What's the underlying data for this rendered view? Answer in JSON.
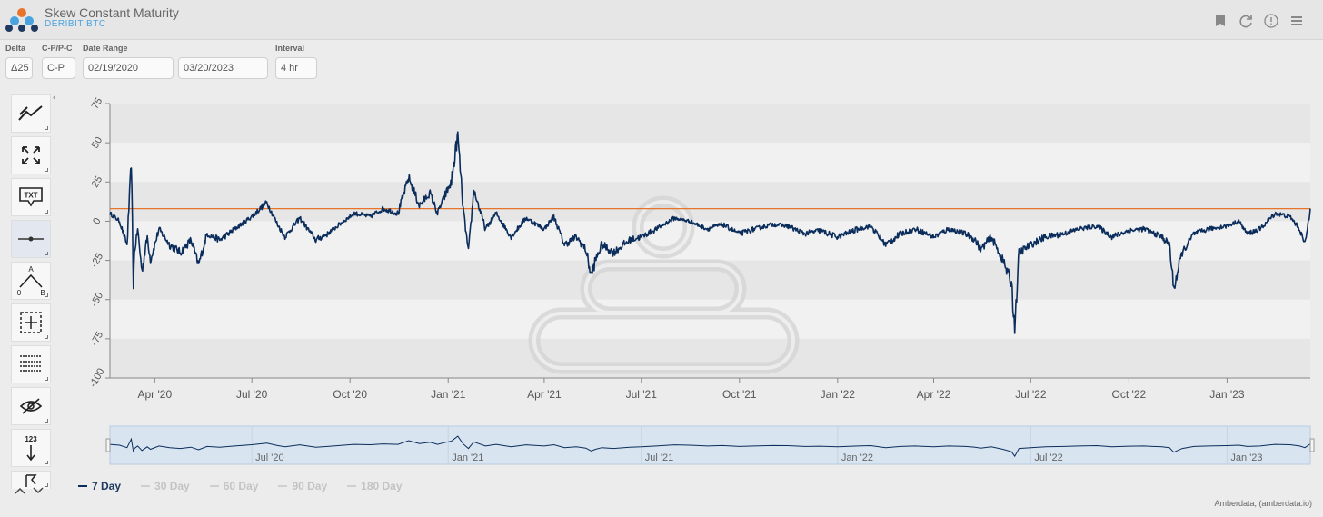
{
  "header": {
    "title": "Skew Constant Maturity",
    "subtitle": "DERIBIT BTC",
    "icons": [
      "bookmark-icon",
      "refresh-icon",
      "info-icon",
      "menu-icon"
    ]
  },
  "controls": {
    "delta": {
      "label": "Delta",
      "value": "Δ25"
    },
    "cp": {
      "label": "C-P/P-C",
      "value": "C-P"
    },
    "date_range": {
      "label": "Date Range",
      "start": "02/19/2020",
      "end": "03/20/2023"
    },
    "interval": {
      "label": "Interval",
      "value": "4 hr"
    }
  },
  "toolbar": {
    "tools": [
      "trend-line-tool",
      "fullscreen-tool",
      "text-tool",
      "horizontal-line-tool",
      "abc-pattern-tool",
      "zoom-box-tool",
      "table-tool",
      "hide-tool",
      "measure-tool",
      "flag-tool"
    ],
    "text_tool_label": "TXT",
    "measure_tool_label": "123",
    "abc_labels": [
      "A",
      "0",
      "B"
    ]
  },
  "legend": [
    {
      "label": "7 Day",
      "active": true
    },
    {
      "label": "30 Day",
      "active": false
    },
    {
      "label": "60 Day",
      "active": false
    },
    {
      "label": "90 Day",
      "active": false
    },
    {
      "label": "180 Day",
      "active": false
    }
  ],
  "credit": "Amberdata, (amberdata.io)",
  "colors": {
    "series": "#0b2d5c",
    "reference_line": "#e8742c",
    "navigator_bg": "#d8e4f0",
    "accent": "#4aa3df"
  },
  "chart_data": {
    "type": "line",
    "title": "",
    "xlabel": "",
    "ylabel": "",
    "ylim": [
      -100,
      75
    ],
    "yticks": [
      75,
      50,
      25,
      0,
      -25,
      -50,
      -75,
      -100
    ],
    "xticks": [
      "Apr '20",
      "Jul '20",
      "Oct '20",
      "Jan '21",
      "Apr '21",
      "Jul '21",
      "Oct '21",
      "Jan '22",
      "Apr '22",
      "Jul '22",
      "Oct '22",
      "Jan '23"
    ],
    "xlim": [
      "2020-02-19",
      "2023-03-20"
    ],
    "reference_line": 8,
    "navigator_ticks": [
      "Jul '20",
      "Jan '21",
      "Jul '21",
      "Jan '22",
      "Jul '22",
      "Jan '23"
    ],
    "series": [
      {
        "name": "7 Day",
        "x": [
          "2020-02-19",
          "2020-02-28",
          "2020-03-06",
          "2020-03-10",
          "2020-03-12",
          "2020-03-13",
          "2020-03-16",
          "2020-03-20",
          "2020-03-25",
          "2020-03-28",
          "2020-04-05",
          "2020-04-15",
          "2020-04-25",
          "2020-05-05",
          "2020-05-12",
          "2020-05-20",
          "2020-06-01",
          "2020-06-15",
          "2020-07-01",
          "2020-07-15",
          "2020-07-25",
          "2020-08-01",
          "2020-08-15",
          "2020-08-30",
          "2020-09-10",
          "2020-09-25",
          "2020-10-05",
          "2020-10-20",
          "2020-11-01",
          "2020-11-15",
          "2020-11-25",
          "2020-12-05",
          "2020-12-15",
          "2020-12-22",
          "2020-12-28",
          "2021-01-04",
          "2021-01-10",
          "2021-01-15",
          "2021-01-20",
          "2021-01-25",
          "2021-02-05",
          "2021-02-15",
          "2021-03-01",
          "2021-03-15",
          "2021-04-01",
          "2021-04-10",
          "2021-04-20",
          "2021-05-01",
          "2021-05-10",
          "2021-05-15",
          "2021-05-19",
          "2021-05-25",
          "2021-06-05",
          "2021-06-20",
          "2021-07-01",
          "2021-07-15",
          "2021-08-01",
          "2021-08-15",
          "2021-09-01",
          "2021-09-15",
          "2021-10-01",
          "2021-10-15",
          "2021-11-01",
          "2021-11-15",
          "2021-12-01",
          "2021-12-15",
          "2022-01-01",
          "2022-01-20",
          "2022-02-01",
          "2022-02-15",
          "2022-03-01",
          "2022-03-15",
          "2022-04-01",
          "2022-04-15",
          "2022-05-01",
          "2022-05-10",
          "2022-05-15",
          "2022-05-25",
          "2022-06-05",
          "2022-06-13",
          "2022-06-16",
          "2022-06-20",
          "2022-07-01",
          "2022-07-15",
          "2022-08-01",
          "2022-08-15",
          "2022-09-01",
          "2022-09-15",
          "2022-10-01",
          "2022-10-15",
          "2022-11-01",
          "2022-11-08",
          "2022-11-12",
          "2022-11-20",
          "2022-12-01",
          "2022-12-15",
          "2023-01-01",
          "2023-01-12",
          "2023-01-20",
          "2023-02-01",
          "2023-02-15",
          "2023-03-01",
          "2023-03-10",
          "2023-03-15",
          "2023-03-20"
        ],
        "y": [
          5,
          0,
          -15,
          38,
          -40,
          -20,
          -5,
          -32,
          -10,
          -25,
          -5,
          -15,
          -20,
          -12,
          -28,
          -8,
          -12,
          -5,
          3,
          12,
          -2,
          -10,
          2,
          -12,
          -8,
          0,
          5,
          3,
          8,
          5,
          28,
          10,
          18,
          5,
          15,
          25,
          55,
          8,
          -20,
          20,
          -5,
          5,
          -10,
          2,
          -5,
          3,
          -15,
          -10,
          -18,
          -35,
          -25,
          -15,
          -20,
          -12,
          -10,
          -5,
          2,
          0,
          -5,
          -2,
          -8,
          -5,
          -2,
          -3,
          -8,
          -6,
          -10,
          -5,
          -3,
          -15,
          -8,
          -5,
          -10,
          -5,
          -8,
          -12,
          -18,
          -10,
          -25,
          -40,
          -68,
          -20,
          -15,
          -10,
          -8,
          -5,
          -3,
          -10,
          -6,
          -5,
          -10,
          -15,
          -43,
          -20,
          -8,
          -5,
          -3,
          0,
          -8,
          -5,
          5,
          3,
          -5,
          -15,
          8
        ]
      }
    ]
  }
}
